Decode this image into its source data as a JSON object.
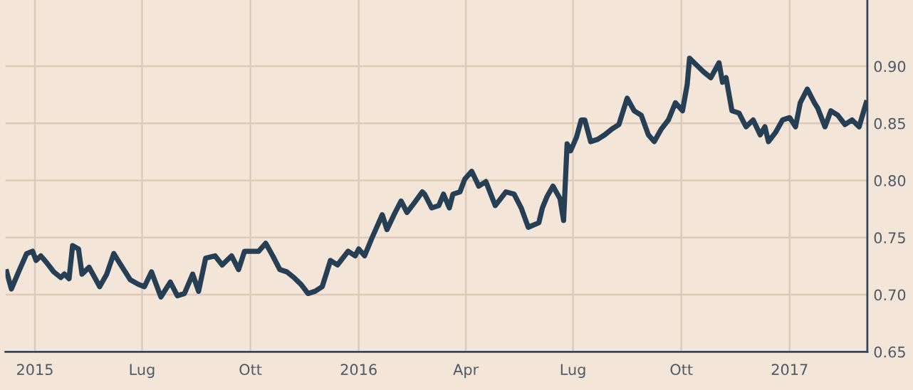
{
  "chart_data": {
    "type": "line",
    "x": [
      "2015-03-08",
      "2015-03-12",
      "2015-03-19",
      "2015-03-25",
      "2015-03-30",
      "2015-04-02",
      "2015-04-06",
      "2015-04-11",
      "2015-04-17",
      "2015-04-23",
      "2015-04-26",
      "2015-04-30",
      "2015-05-03",
      "2015-05-08",
      "2015-05-11",
      "2015-05-17",
      "2015-05-26",
      "2015-06-01",
      "2015-06-07",
      "2015-06-13",
      "2015-06-21",
      "2015-06-28",
      "2015-07-03",
      "2015-07-09",
      "2015-07-17",
      "2015-07-25",
      "2015-07-31",
      "2015-08-06",
      "2015-08-13",
      "2015-08-18",
      "2015-08-24",
      "2015-09-01",
      "2015-09-07",
      "2015-09-15",
      "2015-09-21",
      "2015-09-26",
      "2015-10-02",
      "2015-10-08",
      "2015-10-14",
      "2015-10-20",
      "2015-10-26",
      "2015-11-01",
      "2015-11-07",
      "2015-11-13",
      "2015-11-19",
      "2015-11-25",
      "2015-12-01",
      "2015-12-05",
      "2015-12-08",
      "2015-12-14",
      "2015-12-23",
      "2015-12-29",
      "2016-01-01",
      "2016-01-06",
      "2016-01-12",
      "2016-01-18",
      "2016-01-21",
      "2016-01-25",
      "2016-01-31",
      "2016-02-06",
      "2016-02-11",
      "2016-02-17",
      "2016-02-24",
      "2016-02-26",
      "2016-03-03",
      "2016-03-09",
      "2016-03-13",
      "2016-03-18",
      "2016-03-21",
      "2016-03-27",
      "2016-03-31",
      "2016-04-06",
      "2016-04-12",
      "2016-04-18",
      "2016-04-26",
      "2016-05-05",
      "2016-05-12",
      "2016-05-18",
      "2016-05-24",
      "2016-06-02",
      "2016-06-05",
      "2016-06-09",
      "2016-06-14",
      "2016-06-20",
      "2016-06-23",
      "2016-06-26",
      "2016-06-29",
      "2016-07-04",
      "2016-07-08",
      "2016-07-11",
      "2016-07-16",
      "2016-07-22",
      "2016-07-28",
      "2016-08-03",
      "2016-08-09",
      "2016-08-16",
      "2016-08-22",
      "2016-08-28",
      "2016-09-03",
      "2016-09-08",
      "2016-09-14",
      "2016-09-20",
      "2016-09-26",
      "2016-10-02",
      "2016-10-06",
      "2016-10-08",
      "2016-10-14",
      "2016-10-20",
      "2016-10-26",
      "2016-11-02",
      "2016-11-05",
      "2016-11-08",
      "2016-11-13",
      "2016-11-19",
      "2016-11-25",
      "2016-12-01",
      "2016-12-07",
      "2016-12-11",
      "2016-12-14",
      "2016-12-20",
      "2016-12-26",
      "2017-01-01",
      "2017-01-06",
      "2017-01-10",
      "2017-01-16",
      "2017-01-22",
      "2017-01-25",
      "2017-01-31",
      "2017-02-05",
      "2017-02-11",
      "2017-02-17",
      "2017-02-23",
      "2017-03-01",
      "2017-03-07"
    ],
    "series": [
      {
        "color": "#263f54",
        "values": [
          0.72,
          0.705,
          0.722,
          0.736,
          0.738,
          0.73,
          0.734,
          0.728,
          0.72,
          0.715,
          0.718,
          0.714,
          0.743,
          0.74,
          0.718,
          0.724,
          0.707,
          0.718,
          0.736,
          0.726,
          0.713,
          0.709,
          0.707,
          0.72,
          0.698,
          0.711,
          0.699,
          0.701,
          0.718,
          0.703,
          0.732,
          0.734,
          0.726,
          0.734,
          0.722,
          0.738,
          0.738,
          0.738,
          0.745,
          0.734,
          0.722,
          0.72,
          0.715,
          0.709,
          0.701,
          0.703,
          0.707,
          0.72,
          0.73,
          0.726,
          0.738,
          0.734,
          0.74,
          0.734,
          0.749,
          0.763,
          0.77,
          0.757,
          0.77,
          0.782,
          0.772,
          0.78,
          0.79,
          0.788,
          0.776,
          0.778,
          0.788,
          0.776,
          0.788,
          0.79,
          0.801,
          0.808,
          0.795,
          0.799,
          0.778,
          0.79,
          0.788,
          0.776,
          0.759,
          0.763,
          0.776,
          0.786,
          0.795,
          0.784,
          0.765,
          0.832,
          0.826,
          0.838,
          0.853,
          0.853,
          0.834,
          0.836,
          0.84,
          0.845,
          0.849,
          0.872,
          0.861,
          0.857,
          0.84,
          0.834,
          0.845,
          0.853,
          0.868,
          0.861,
          0.884,
          0.907,
          0.901,
          0.895,
          0.89,
          0.903,
          0.886,
          0.89,
          0.861,
          0.859,
          0.847,
          0.853,
          0.84,
          0.847,
          0.834,
          0.842,
          0.853,
          0.855,
          0.847,
          0.868,
          0.88,
          0.868,
          0.863,
          0.847,
          0.861,
          0.857,
          0.849,
          0.853,
          0.847,
          0.868
        ]
      }
    ],
    "xlim": [
      "2015-03-07",
      "2017-03-08"
    ],
    "xticks": [
      {
        "value": "2015-04-01",
        "label": "2015"
      },
      {
        "value": "2015-07-01",
        "label": "Lug"
      },
      {
        "value": "2015-10-01",
        "label": "Ott"
      },
      {
        "value": "2016-01-01",
        "label": "2016"
      },
      {
        "value": "2016-04-01",
        "label": "Apr"
      },
      {
        "value": "2016-07-01",
        "label": "Lug"
      },
      {
        "value": "2016-10-01",
        "label": "Ott"
      },
      {
        "value": "2017-01-01",
        "label": "2017"
      }
    ],
    "ylim": [
      0.65,
      0.958
    ],
    "yticks": [
      {
        "value": 0.65,
        "label": "0.65"
      },
      {
        "value": 0.7,
        "label": "0.70"
      },
      {
        "value": 0.75,
        "label": "0.75"
      },
      {
        "value": 0.8,
        "label": "0.80"
      },
      {
        "value": 0.85,
        "label": "0.85"
      },
      {
        "value": 0.9,
        "label": "0.90"
      }
    ],
    "grid": true,
    "marker": "none",
    "line_style": "solid",
    "legend": false
  }
}
